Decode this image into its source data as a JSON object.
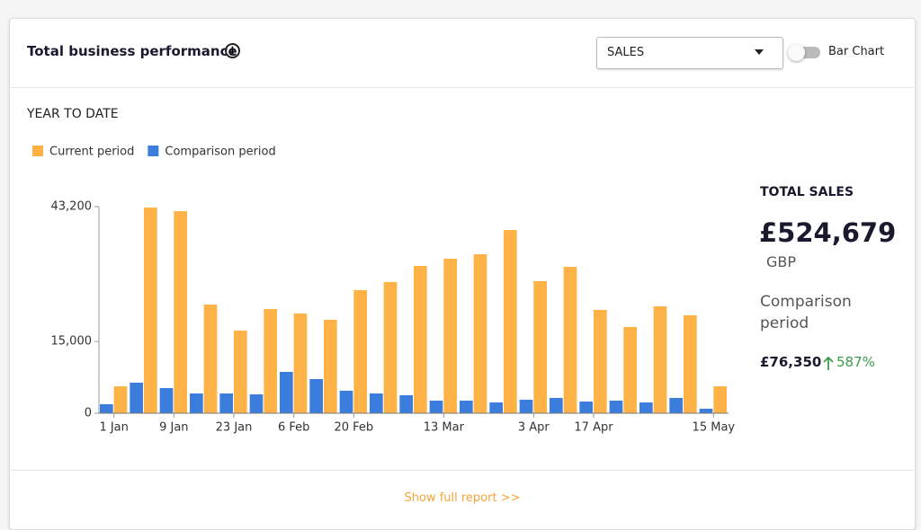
{
  "header": {
    "title": "Total business performance",
    "dropdown": "SALES",
    "toggle_label": "Bar Chart"
  },
  "section_title": "YEAR TO DATE",
  "chart_data": {
    "type": "bar",
    "categories": [
      "1 Jan",
      null,
      "9 Jan",
      null,
      "23 Jan",
      null,
      "6 Feb",
      null,
      "20 Feb",
      null,
      null,
      "13 Mar",
      null,
      null,
      "3 Apr",
      null,
      "17 Apr",
      null,
      null,
      null,
      "15 May"
    ],
    "series": [
      {
        "name": "Current period",
        "color": "#ffb347",
        "values": [
          5630,
          43000,
          42250,
          22720,
          17280,
          21780,
          20850,
          19530,
          25730,
          27420,
          30800,
          32300,
          33240,
          38310,
          27610,
          30610,
          21600,
          18030,
          22350,
          20470,
          5630
        ]
      },
      {
        "name": "Comparison period",
        "color": "#3b7ddd",
        "values": [
          1880,
          6390,
          5260,
          4130,
          4130,
          3940,
          8640,
          7140,
          4700,
          4130,
          3760,
          2630,
          2630,
          2250,
          2820,
          3190,
          2440,
          2630,
          2250,
          3190,
          940
        ]
      }
    ],
    "ylim": [
      0,
      43200
    ],
    "yticks": [
      0,
      {
        "value": 15000,
        "label": "15,000"
      },
      {
        "value": 43200,
        "label": "43,200"
      }
    ],
    "grid": false,
    "legend": "top-left"
  },
  "summary": {
    "title": "TOTAL SALES",
    "total": "£524,679",
    "currency": "GBP",
    "comparison_label": "Comparison period",
    "comparison_value": "£76,350",
    "change": "587%"
  },
  "footer": {
    "link": "Show full report >>"
  }
}
